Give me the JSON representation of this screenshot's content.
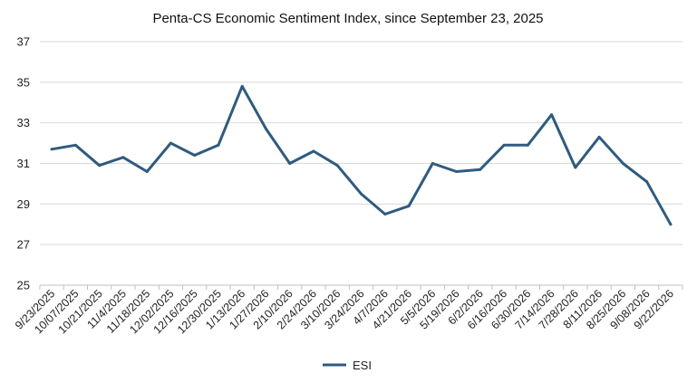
{
  "chart_data": {
    "type": "line",
    "title": "Penta-CS Economic Sentiment Index, since September 23, 2025",
    "xlabel": "",
    "ylabel": "",
    "ylim": [
      25,
      37
    ],
    "yticks": [
      25,
      27,
      29,
      31,
      33,
      35,
      37
    ],
    "grid": true,
    "legend_position": "bottom",
    "categories": [
      "9/23/2025",
      "10/07/2025",
      "10/21/2025",
      "11/4/2025",
      "11/18/2025",
      "12/02/2025",
      "12/16/2025",
      "12/30/2025",
      "1/13/2026",
      "1/27/2026",
      "2/10/2026",
      "2/24/2026",
      "3/10/2026",
      "3/24/2026",
      "4/7/2026",
      "4/21/2026",
      "5/5/2026",
      "5/19/2026",
      "6/2/2026",
      "6/16/2026",
      "6/30/2026",
      "7/14/2026",
      "7/28/2026",
      "8/11/2026",
      "8/25/2026",
      "9/08/2026",
      "9/22/2026"
    ],
    "series": [
      {
        "name": "ESI",
        "color": "#2f5b7f",
        "values": [
          31.7,
          31.9,
          30.9,
          31.3,
          30.6,
          32.0,
          31.4,
          31.9,
          34.8,
          32.7,
          31.0,
          31.6,
          30.9,
          29.5,
          28.5,
          28.9,
          31.0,
          30.6,
          30.7,
          31.9,
          31.9,
          33.4,
          30.8,
          32.3,
          31.0,
          30.1,
          28.0
        ]
      }
    ]
  }
}
